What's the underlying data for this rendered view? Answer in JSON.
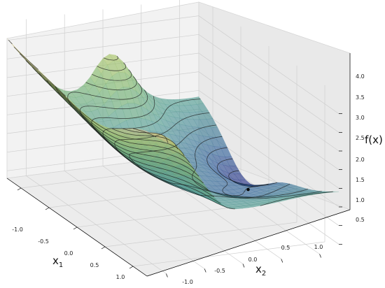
{
  "chart_data": {
    "type": "surface3d",
    "title": "",
    "xlabel": "x",
    "xlabel_sub": "1",
    "ylabel": "x",
    "ylabel_sub": "2",
    "zlabel": "f(x)",
    "xlim": [
      -1.25,
      1.25
    ],
    "ylim": [
      -1.25,
      1.25
    ],
    "zlim": [
      0.3,
      4.5
    ],
    "x_ticks": [
      "-1.0",
      "-0.5",
      "0.0",
      "0.5",
      "1.0"
    ],
    "y_ticks": [
      "-1.0",
      "-0.5",
      "0.0",
      "0.5",
      "1.0"
    ],
    "z_ticks": [
      "0.5",
      "1.0",
      "1.5",
      "2.0",
      "2.5",
      "3.0",
      "3.5",
      "4.0"
    ],
    "grid": true,
    "colormap": "gist_earth_r",
    "surface_alpha": 0.6,
    "contour_color": "#1a1a1a",
    "minimum_marker": {
      "x1": -0.3,
      "x2": 1.2,
      "z": 0.35,
      "color": "#000000"
    }
  }
}
